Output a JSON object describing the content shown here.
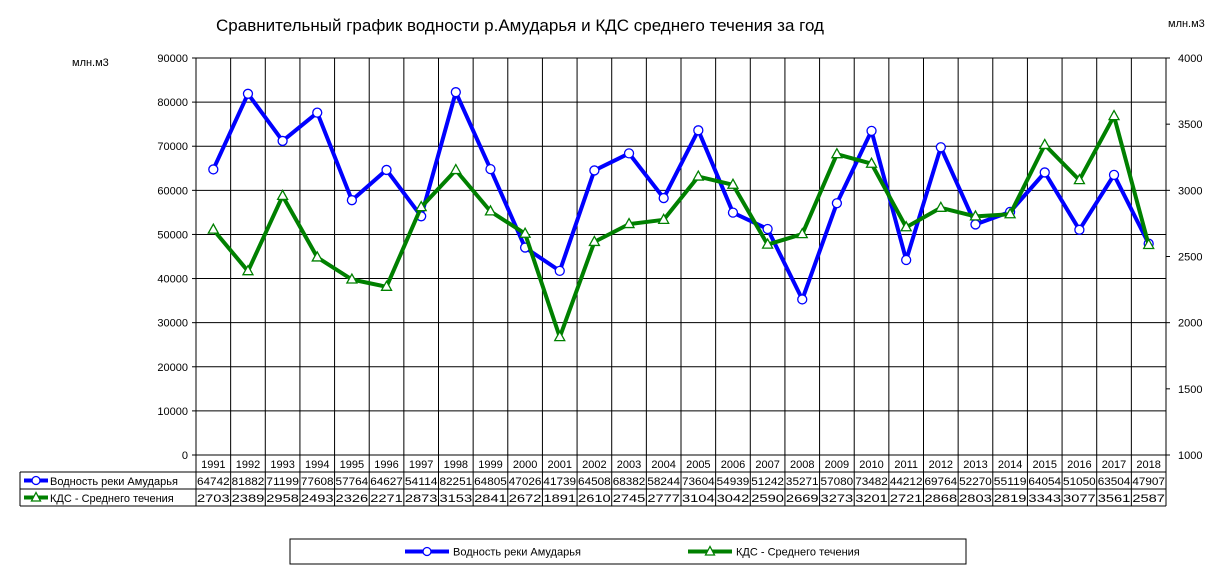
{
  "chart_data": {
    "type": "line",
    "title": "Сравнительный график водности р.Амударья и КДС среднего течения за год",
    "ylabel_left": "млн.м3",
    "ylabel_right": "млн.м3",
    "ylim_left": [
      0,
      90000
    ],
    "ylim_right": [
      1000,
      4000
    ],
    "yticks_left": [
      0,
      10000,
      20000,
      30000,
      40000,
      50000,
      60000,
      70000,
      80000,
      90000
    ],
    "yticks_right": [
      1000,
      1500,
      2000,
      2500,
      3000,
      3500,
      4000
    ],
    "grid": true,
    "legend_position": "bottom",
    "categories": [
      "1991",
      "1992",
      "1993",
      "1994",
      "1995",
      "1996",
      "1997",
      "1998",
      "1999",
      "2000",
      "2001",
      "2002",
      "2003",
      "2004",
      "2005",
      "2006",
      "2007",
      "2008",
      "2009",
      "2010",
      "2011",
      "2012",
      "2013",
      "2014",
      "2015",
      "2016",
      "2017",
      "2018"
    ],
    "series": [
      {
        "name": "Водность реки Амударья",
        "axis": "left",
        "color": "#0000ff",
        "marker": "circle",
        "values": [
          64742,
          81882,
          71199,
          77608,
          57764,
          64627,
          54114,
          82251,
          64805,
          47026,
          41739,
          64508,
          68382,
          58244,
          73604,
          54939,
          51242,
          35271,
          57080,
          73482,
          44212,
          69764,
          52270,
          55119,
          64054,
          51050,
          63504,
          47907
        ],
        "labels": [
          "64742",
          "81882",
          "71199",
          "77608",
          "57764",
          "64627",
          "54114",
          "82251",
          "64805",
          "47026",
          "41739",
          "64508",
          "68382",
          "58244",
          "73604",
          "54939",
          "51242",
          "35271",
          "57080",
          "73482",
          "44212",
          "69764",
          "52270",
          "55119",
          "64054",
          "51050",
          "63504",
          "47907"
        ]
      },
      {
        "name": "КДС - Среднего течения",
        "axis": "right",
        "color": "#008000",
        "marker": "triangle",
        "values": [
          2703,
          2389,
          2958,
          2493,
          2326,
          2271,
          2873,
          3153,
          2841,
          2672,
          1891,
          2610,
          2745,
          2777,
          3104,
          3042,
          2590,
          2669,
          3273,
          3201,
          2721,
          2868,
          2803,
          2819,
          3343,
          3077,
          3561,
          2587
        ],
        "labels": [
          "2703",
          "2389",
          "2958",
          "2493",
          "2326",
          "2271",
          "2873",
          "3153",
          "2841",
          "2672",
          "1891",
          "2610",
          "2745",
          "2777",
          "3104",
          "3042",
          "2590",
          "2669",
          "3273",
          "3201",
          "2721",
          "2868",
          "2803",
          "2819",
          "3343",
          "3077",
          "3561",
          "2587"
        ]
      }
    ]
  }
}
